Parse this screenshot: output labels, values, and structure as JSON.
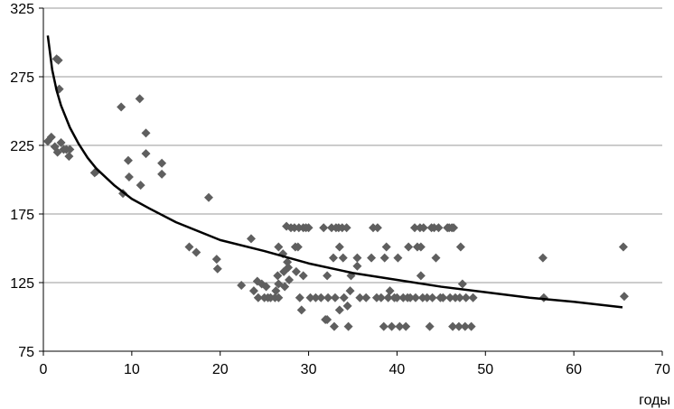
{
  "chart_data": {
    "type": "scatter",
    "title": "",
    "xlabel": "годы",
    "ylabel": "",
    "xlim": [
      0,
      70
    ],
    "ylim": [
      75,
      325
    ],
    "x_ticks": [
      0,
      10,
      20,
      30,
      40,
      50,
      60,
      70
    ],
    "y_ticks": [
      75,
      125,
      175,
      225,
      275,
      325
    ],
    "x_tick_labels": [
      "0",
      "10",
      "20",
      "30",
      "40",
      "50",
      "60",
      "70"
    ],
    "y_tick_labels": [
      "75",
      "125",
      "175",
      "225",
      "275",
      "325"
    ],
    "grid": "horizontal",
    "legend": "none",
    "colors": {
      "points": "#5f5f5f",
      "trend": "#000000",
      "grid": "#9a9a9a",
      "axis": "#000000"
    },
    "series": [
      {
        "kind": "points",
        "marker": "diamond",
        "points": [
          [
            0.5,
            228
          ],
          [
            0.9,
            231
          ],
          [
            1.5,
            288
          ],
          [
            1.7,
            287
          ],
          [
            1.8,
            266
          ],
          [
            1.3,
            224
          ],
          [
            1.6,
            220
          ],
          [
            2.0,
            227
          ],
          [
            2.3,
            222
          ],
          [
            2.6,
            222
          ],
          [
            2.9,
            217
          ],
          [
            3.0,
            222
          ],
          [
            5.8,
            205
          ],
          [
            6.0,
            206
          ],
          [
            8.8,
            253
          ],
          [
            9.0,
            190
          ],
          [
            9.6,
            214
          ],
          [
            9.7,
            202
          ],
          [
            10.9,
            259
          ],
          [
            11.0,
            196
          ],
          [
            11.6,
            234
          ],
          [
            11.6,
            219
          ],
          [
            13.4,
            212
          ],
          [
            13.4,
            204
          ],
          [
            16.5,
            151
          ],
          [
            17.3,
            147
          ],
          [
            18.7,
            187
          ],
          [
            19.6,
            142
          ],
          [
            19.7,
            135
          ],
          [
            22.4,
            123
          ],
          [
            23.5,
            157
          ],
          [
            23.8,
            119
          ],
          [
            24.2,
            126
          ],
          [
            24.3,
            114
          ],
          [
            24.7,
            124
          ],
          [
            25.0,
            114
          ],
          [
            25.2,
            122
          ],
          [
            25.4,
            114
          ],
          [
            25.7,
            114
          ],
          [
            26.2,
            114
          ],
          [
            26.3,
            119
          ],
          [
            26.5,
            130
          ],
          [
            26.6,
            151
          ],
          [
            26.6,
            124
          ],
          [
            26.6,
            114
          ],
          [
            27.1,
            146
          ],
          [
            27.2,
            133
          ],
          [
            27.3,
            122
          ],
          [
            27.5,
            166
          ],
          [
            27.6,
            140
          ],
          [
            27.7,
            136
          ],
          [
            27.8,
            127
          ],
          [
            28.0,
            165
          ],
          [
            28.4,
            165
          ],
          [
            28.5,
            151
          ],
          [
            28.8,
            151
          ],
          [
            28.6,
            133
          ],
          [
            28.9,
            165
          ],
          [
            29.0,
            114
          ],
          [
            29.2,
            105
          ],
          [
            29.4,
            130
          ],
          [
            29.4,
            165
          ],
          [
            29.7,
            165
          ],
          [
            30.0,
            165
          ],
          [
            30.2,
            114
          ],
          [
            30.8,
            114
          ],
          [
            31.4,
            114
          ],
          [
            31.7,
            165
          ],
          [
            31.9,
            98
          ],
          [
            32.1,
            98
          ],
          [
            32.1,
            130
          ],
          [
            32.2,
            114
          ],
          [
            32.6,
            165
          ],
          [
            32.8,
            143
          ],
          [
            32.9,
            93
          ],
          [
            33.0,
            114
          ],
          [
            33.1,
            165
          ],
          [
            33.4,
            165
          ],
          [
            33.5,
            151
          ],
          [
            33.5,
            105
          ],
          [
            33.8,
            165
          ],
          [
            33.9,
            143
          ],
          [
            34.0,
            114
          ],
          [
            34.3,
            165
          ],
          [
            34.4,
            108
          ],
          [
            34.5,
            93
          ],
          [
            34.7,
            119
          ],
          [
            34.8,
            130
          ],
          [
            35.5,
            143
          ],
          [
            35.5,
            137
          ],
          [
            35.8,
            114
          ],
          [
            36.5,
            114
          ],
          [
            37.1,
            143
          ],
          [
            37.3,
            165
          ],
          [
            37.7,
            114
          ],
          [
            37.8,
            165
          ],
          [
            38.2,
            114
          ],
          [
            38.5,
            93
          ],
          [
            38.6,
            143
          ],
          [
            38.8,
            151
          ],
          [
            39.0,
            114
          ],
          [
            39.2,
            119
          ],
          [
            39.4,
            93
          ],
          [
            39.7,
            114
          ],
          [
            40.0,
            114
          ],
          [
            40.1,
            143
          ],
          [
            40.3,
            93
          ],
          [
            40.7,
            114
          ],
          [
            41.0,
            93
          ],
          [
            41.2,
            114
          ],
          [
            41.3,
            151
          ],
          [
            41.5,
            114
          ],
          [
            42.0,
            165
          ],
          [
            42.1,
            114
          ],
          [
            42.3,
            151
          ],
          [
            42.6,
            165
          ],
          [
            42.7,
            151
          ],
          [
            42.7,
            130
          ],
          [
            42.9,
            114
          ],
          [
            43.0,
            165
          ],
          [
            43.4,
            114
          ],
          [
            43.7,
            93
          ],
          [
            43.9,
            165
          ],
          [
            44.0,
            114
          ],
          [
            44.2,
            165
          ],
          [
            44.4,
            143
          ],
          [
            44.7,
            165
          ],
          [
            44.9,
            114
          ],
          [
            45.2,
            114
          ],
          [
            45.7,
            165
          ],
          [
            45.9,
            165
          ],
          [
            46.0,
            114
          ],
          [
            46.2,
            165
          ],
          [
            46.3,
            93
          ],
          [
            46.4,
            165
          ],
          [
            46.6,
            114
          ],
          [
            47.0,
            93
          ],
          [
            47.1,
            114
          ],
          [
            47.2,
            151
          ],
          [
            47.4,
            124
          ],
          [
            47.7,
            93
          ],
          [
            47.8,
            114
          ],
          [
            48.4,
            93
          ],
          [
            48.6,
            114
          ],
          [
            56.5,
            143
          ],
          [
            56.6,
            114
          ],
          [
            65.6,
            151
          ],
          [
            65.7,
            115
          ]
        ]
      },
      {
        "kind": "trend_line",
        "points": [
          [
            0.5,
            305
          ],
          [
            1,
            280
          ],
          [
            1.5,
            265
          ],
          [
            2,
            254
          ],
          [
            3,
            238
          ],
          [
            4,
            226
          ],
          [
            5,
            216
          ],
          [
            6,
            208
          ],
          [
            8,
            196
          ],
          [
            10,
            186
          ],
          [
            12,
            179
          ],
          [
            15,
            169
          ],
          [
            20,
            156
          ],
          [
            25,
            148
          ],
          [
            30,
            139
          ],
          [
            35,
            132
          ],
          [
            40,
            127
          ],
          [
            45,
            122
          ],
          [
            50,
            118
          ],
          [
            55,
            114
          ],
          [
            60,
            111
          ],
          [
            65.5,
            107
          ]
        ]
      }
    ]
  }
}
